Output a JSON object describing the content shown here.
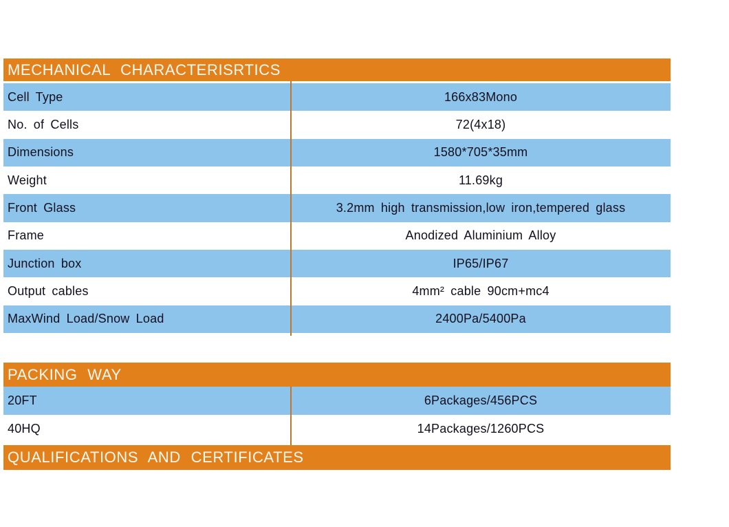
{
  "page": {
    "background": "#ffffff"
  },
  "colors": {
    "section_header_bg": "#e2811b",
    "section_header_text": "#fcf9f2",
    "row_highlight_bg": "#8dc4ec",
    "row_plain_bg": "#ffffff",
    "column_divider": "#c1772b",
    "body_text": "#10101e"
  },
  "sections": [
    {
      "title": "MECHANICAL CHARACTERISRTICS",
      "rows": [
        {
          "label": "Cell Type",
          "value": "166x83Mono"
        },
        {
          "label": "No. of Cells",
          "value": "72(4x18)"
        },
        {
          "label": "Dimensions",
          "value": "1580*705*35mm"
        },
        {
          "label": "Weight",
          "value": "11.69kg"
        },
        {
          "label": "Front Glass",
          "value": "3.2mm high transmission,low iron,tempered glass"
        },
        {
          "label": "Frame",
          "value": "Anodized Aluminium Alloy"
        },
        {
          "label": "Junction box",
          "value": "IP65/IP67"
        },
        {
          "label": "Output cables",
          "value": "4mm² cable 90cm+mc4"
        },
        {
          "label": "MaxWind Load/Snow Load",
          "value": "2400Pa/5400Pa"
        }
      ]
    },
    {
      "title": "PACKING WAY",
      "rows": [
        {
          "label": "20FT",
          "value": "6Packages/456PCS"
        },
        {
          "label": "40HQ",
          "value": "14Packages/1260PCS"
        }
      ]
    },
    {
      "title": "QUALIFICATIONS AND CERTIFICATES",
      "rows": []
    }
  ]
}
